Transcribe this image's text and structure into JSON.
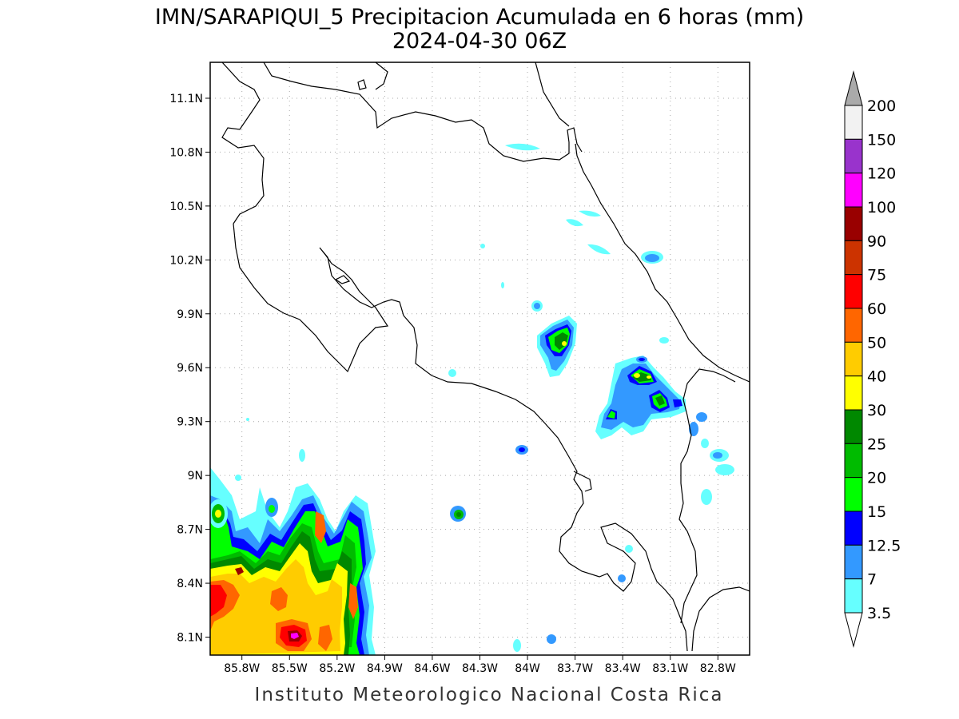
{
  "title": {
    "line1": "IMN/SARAPIQUI_5 Precipitacion Acumulada en 6 horas (mm)",
    "line2": "2024-04-30 06Z"
  },
  "footer": "Instituto Meteorologico Nacional Costa Rica",
  "map": {
    "lon_range": [
      -86.0,
      -82.6
    ],
    "lat_range": [
      8.0,
      11.3
    ],
    "lon_ticks": [
      {
        "value": -85.8,
        "label": "85.8W"
      },
      {
        "value": -85.5,
        "label": "85.5W"
      },
      {
        "value": -85.2,
        "label": "85.2W"
      },
      {
        "value": -84.9,
        "label": "84.9W"
      },
      {
        "value": -84.6,
        "label": "84.6W"
      },
      {
        "value": -84.3,
        "label": "84.3W"
      },
      {
        "value": -84.0,
        "label": "84W"
      },
      {
        "value": -83.7,
        "label": "83.7W"
      },
      {
        "value": -83.4,
        "label": "83.4W"
      },
      {
        "value": -83.1,
        "label": "83.1W"
      },
      {
        "value": -82.8,
        "label": "82.8W"
      }
    ],
    "lat_ticks": [
      {
        "value": 8.1,
        "label": "8.1N"
      },
      {
        "value": 8.4,
        "label": "8.4N"
      },
      {
        "value": 8.7,
        "label": "8.7N"
      },
      {
        "value": 9.0,
        "label": "9N"
      },
      {
        "value": 9.3,
        "label": "9.3N"
      },
      {
        "value": 9.6,
        "label": "9.6N"
      },
      {
        "value": 9.9,
        "label": "9.9N"
      },
      {
        "value": 10.2,
        "label": "10.2N"
      },
      {
        "value": 10.5,
        "label": "10.5N"
      },
      {
        "value": 10.8,
        "label": "10.8N"
      },
      {
        "value": 11.1,
        "label": "11.1N"
      }
    ],
    "grid": true,
    "coastline_color": "#000000"
  },
  "legend": {
    "labels": [
      "200",
      "150",
      "120",
      "100",
      "90",
      "75",
      "60",
      "50",
      "40",
      "30",
      "25",
      "20",
      "15",
      "12.5",
      "7",
      "3.5"
    ],
    "colors_top_to_bottom": [
      "#f2f2f2",
      "#9933cc",
      "#ff00ff",
      "#990000",
      "#cc3300",
      "#ff0000",
      "#ff6600",
      "#ffcc00",
      "#ffff00",
      "#008800",
      "#00bb00",
      "#00ff00",
      "#0000ff",
      "#3399ff",
      "#66ffff"
    ],
    "over_color": "#aaaaaa",
    "under_color": "#ffffff"
  }
}
